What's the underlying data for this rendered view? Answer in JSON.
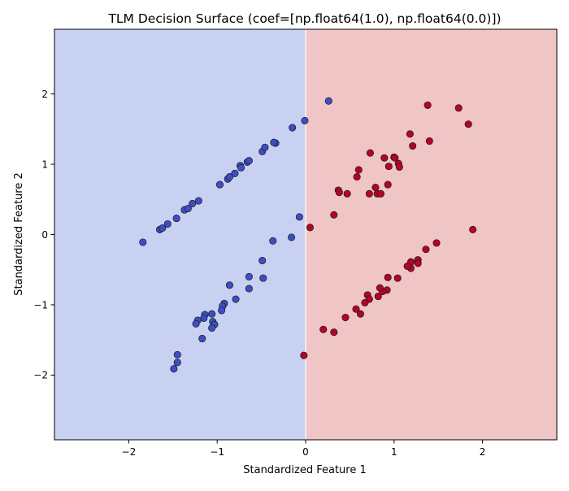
{
  "chart_data": {
    "type": "scatter",
    "title": "TLM Decision Surface (coef=[np.float64(1.0), np.float64(0.0)])",
    "xlabel": "Standardized Feature 1",
    "ylabel": "Standardized Feature 2",
    "xlim": [
      -2.84,
      2.84
    ],
    "ylim": [
      -2.92,
      2.92
    ],
    "xticks": [
      -2,
      -1,
      0,
      1,
      2
    ],
    "yticks": [
      -2,
      -1,
      0,
      1,
      2
    ],
    "grid": false,
    "legend": "none",
    "decision_boundary": {
      "x": 0,
      "left_region_color": "#c8d1f2",
      "right_region_color": "#efc6c5",
      "boundary_color": "#ffffff"
    },
    "series": [
      {
        "color": "#3c4ec2",
        "points": [
          [
            -1.84,
            -0.11
          ],
          [
            -1.65,
            0.07
          ],
          [
            -1.62,
            0.09
          ],
          [
            -1.56,
            0.15
          ],
          [
            -1.46,
            0.23
          ],
          [
            -1.37,
            0.35
          ],
          [
            -1.33,
            0.37
          ],
          [
            -1.28,
            0.44
          ],
          [
            -1.21,
            0.48
          ],
          [
            -0.97,
            0.71
          ],
          [
            -0.88,
            0.79
          ],
          [
            -0.86,
            0.82
          ],
          [
            -0.8,
            0.87
          ],
          [
            -0.74,
            0.98
          ],
          [
            -0.73,
            0.95
          ],
          [
            -0.66,
            1.03
          ],
          [
            -0.64,
            1.05
          ],
          [
            -0.49,
            1.18
          ],
          [
            -0.46,
            1.24
          ],
          [
            -0.34,
            1.3
          ],
          [
            -0.36,
            1.31
          ],
          [
            -0.15,
            1.52
          ],
          [
            -0.01,
            1.62
          ],
          [
            0.26,
            1.9
          ],
          [
            -0.07,
            0.25
          ],
          [
            -0.37,
            -0.09
          ],
          [
            -0.16,
            -0.04
          ],
          [
            -0.49,
            -0.37
          ],
          [
            -0.48,
            -0.62
          ],
          [
            -0.64,
            -0.6
          ],
          [
            -0.64,
            -0.77
          ],
          [
            -0.79,
            -0.92
          ],
          [
            -0.86,
            -0.72
          ],
          [
            -0.92,
            -0.98
          ],
          [
            -0.94,
            -1.02
          ],
          [
            -0.95,
            -1.08
          ],
          [
            -1.06,
            -1.13
          ],
          [
            -1.05,
            -1.24
          ],
          [
            -1.03,
            -1.28
          ],
          [
            -1.06,
            -1.33
          ],
          [
            -1.14,
            -1.14
          ],
          [
            -1.15,
            -1.19
          ],
          [
            -1.22,
            -1.22
          ],
          [
            -1.24,
            -1.27
          ],
          [
            -1.17,
            -1.48
          ],
          [
            -1.45,
            -1.71
          ],
          [
            -1.45,
            -1.82
          ],
          [
            -1.49,
            -1.91
          ]
        ]
      },
      {
        "color": "#b40426",
        "points": [
          [
            0.05,
            0.1
          ],
          [
            0.32,
            0.28
          ],
          [
            0.37,
            0.63
          ],
          [
            0.38,
            0.6
          ],
          [
            0.47,
            0.58
          ],
          [
            0.58,
            0.82
          ],
          [
            0.6,
            0.92
          ],
          [
            0.72,
            0.58
          ],
          [
            0.73,
            1.16
          ],
          [
            0.79,
            0.67
          ],
          [
            0.81,
            0.58
          ],
          [
            0.85,
            0.58
          ],
          [
            0.89,
            1.09
          ],
          [
            0.93,
            0.71
          ],
          [
            0.94,
            0.97
          ],
          [
            1.0,
            1.1
          ],
          [
            1.01,
            1.09
          ],
          [
            1.05,
            1.01
          ],
          [
            1.06,
            0.96
          ],
          [
            1.18,
            1.43
          ],
          [
            1.21,
            1.26
          ],
          [
            1.38,
            1.84
          ],
          [
            1.4,
            1.33
          ],
          [
            1.73,
            1.8
          ],
          [
            1.84,
            1.57
          ],
          [
            1.89,
            0.07
          ],
          [
            1.48,
            -0.12
          ],
          [
            1.36,
            -0.21
          ],
          [
            1.27,
            -0.36
          ],
          [
            1.27,
            -0.41
          ],
          [
            1.19,
            -0.39
          ],
          [
            1.19,
            -0.48
          ],
          [
            1.15,
            -0.45
          ],
          [
            1.04,
            -0.62
          ],
          [
            0.93,
            -0.61
          ],
          [
            0.92,
            -0.79
          ],
          [
            0.87,
            -0.81
          ],
          [
            0.84,
            -0.76
          ],
          [
            0.82,
            -0.88
          ],
          [
            0.7,
            -0.86
          ],
          [
            0.72,
            -0.92
          ],
          [
            0.67,
            -0.97
          ],
          [
            0.57,
            -1.06
          ],
          [
            0.62,
            -1.13
          ],
          [
            0.45,
            -1.18
          ],
          [
            0.2,
            -1.35
          ],
          [
            0.32,
            -1.39
          ],
          [
            -0.02,
            -1.72
          ]
        ]
      }
    ]
  }
}
